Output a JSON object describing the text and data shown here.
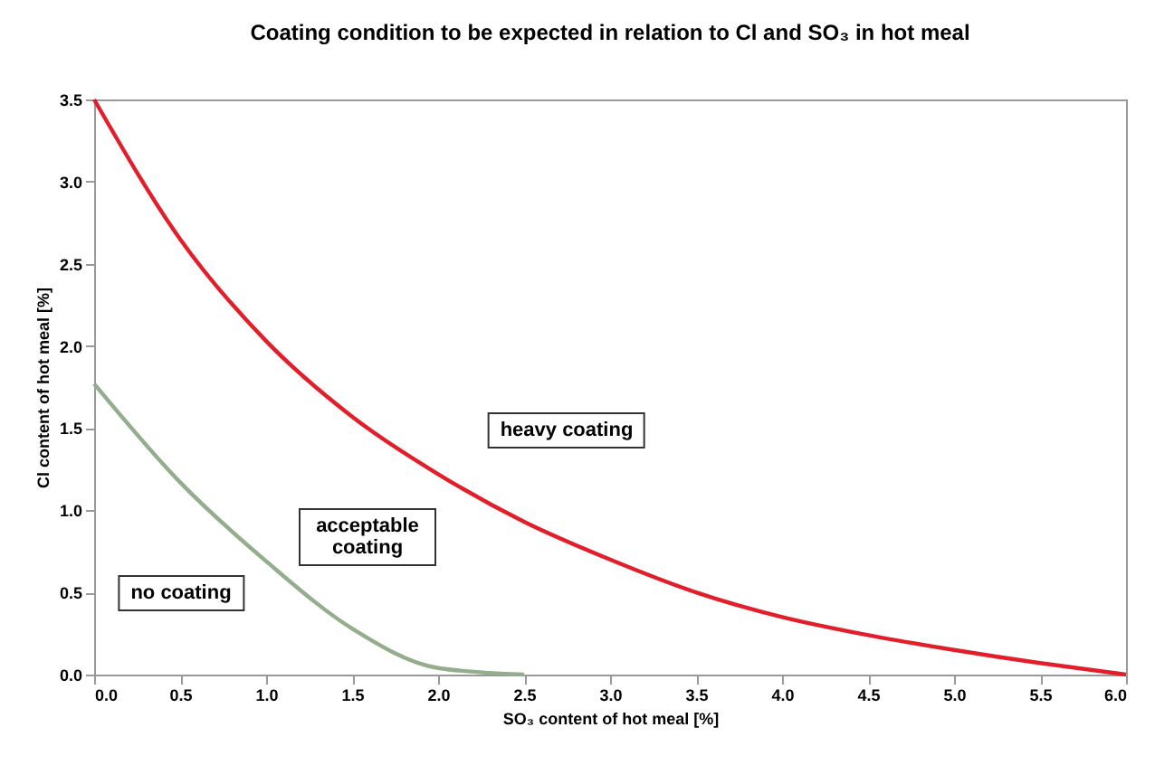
{
  "chart_data": {
    "type": "line",
    "title": "Coating condition to be expected in relation to Cl and SO₃ in hot meal",
    "xlabel": "SO₃ content of hot meal [%]",
    "ylabel": "Cl content of hot meal [%]",
    "annotations": [
      "no coating",
      "acceptable coating",
      "heavy coating"
    ],
    "x": [
      0,
      0.5,
      1.0,
      1.5,
      2.0,
      2.5,
      3.0,
      3.5,
      4.0,
      4.5,
      5.0,
      5.5,
      6.0
    ],
    "series": [
      {
        "color": "#e31e2b",
        "values": [
          3.5,
          2.65,
          2.03,
          1.57,
          1.22,
          0.93,
          0.7,
          0.5,
          0.35,
          0.24,
          0.15,
          0.07,
          0.0
        ]
      },
      {
        "color": "#94ad8c",
        "x": [
          0,
          0.5,
          1.0,
          1.5,
          2.0,
          2.5
        ],
        "values": [
          1.77,
          1.17,
          0.69,
          0.28,
          0.04,
          0.0
        ]
      }
    ],
    "xlim": [
      0,
      6
    ],
    "ylim": [
      0,
      3.5
    ],
    "xticks": [
      {
        "value": 0,
        "label": "0.0"
      },
      0.5,
      {
        "value": 1,
        "label": "1.0"
      },
      1.5,
      {
        "value": 2,
        "label": "2.0"
      },
      2.5,
      {
        "value": 3,
        "label": "3.0"
      },
      3.5,
      {
        "value": 4,
        "label": "4.0"
      },
      4.5,
      {
        "value": 5,
        "label": "5.0"
      },
      5.5,
      {
        "value": 6,
        "label": "6.0"
      }
    ],
    "yticks": [
      {
        "value": 0,
        "label": "0.0"
      },
      0.5,
      {
        "value": 1,
        "label": "1.0"
      },
      1.5,
      {
        "value": 2,
        "label": "2.0"
      },
      2.5,
      {
        "value": 3,
        "label": "3.0"
      },
      3.5
    ],
    "grid": false,
    "legend": false,
    "marker": "none",
    "line_style": "solid"
  }
}
